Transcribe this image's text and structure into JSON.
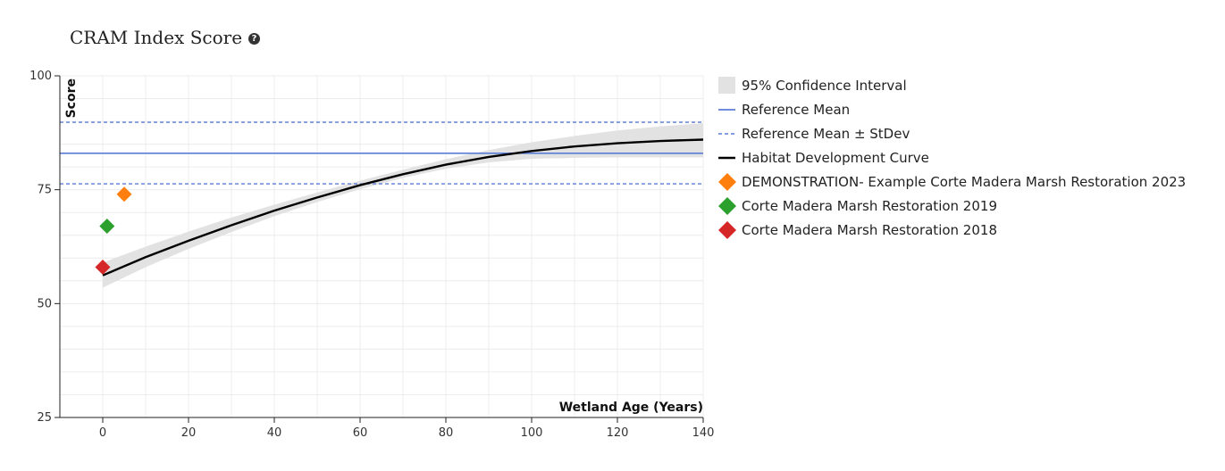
{
  "header": {
    "title": "CRAM Index Score",
    "help_icon": "question-circle-icon"
  },
  "chart_data": {
    "type": "line",
    "xlabel": "Wetland Age (Years)",
    "ylabel": "Score",
    "xlim": [
      -10,
      140
    ],
    "ylim": [
      25,
      100
    ],
    "x_ticks": [
      0,
      20,
      40,
      60,
      80,
      100,
      120,
      140
    ],
    "y_ticks": [
      25,
      50,
      75,
      100
    ],
    "grid": true,
    "legend_position": "right",
    "reference_mean": 83,
    "reference_stdev_band": [
      76.3,
      89.8
    ],
    "habitat_curve": {
      "name": "Habitat Development Curve",
      "x": [
        0,
        10,
        20,
        30,
        40,
        50,
        60,
        70,
        80,
        90,
        100,
        110,
        120,
        130,
        140
      ],
      "y": [
        56.2,
        60.2,
        63.8,
        67.2,
        70.4,
        73.3,
        76.0,
        78.4,
        80.5,
        82.2,
        83.5,
        84.5,
        85.2,
        85.7,
        86.0
      ]
    },
    "confidence_interval": {
      "name": "95% Confidence Interval",
      "x": [
        0,
        10,
        20,
        30,
        40,
        50,
        60,
        70,
        80,
        90,
        100,
        110,
        120,
        130,
        140
      ],
      "lower": [
        53.5,
        58.0,
        62.0,
        65.7,
        69.2,
        72.3,
        75.1,
        77.6,
        79.6,
        81.0,
        81.8,
        82.0,
        82.1,
        82.1,
        82.1
      ],
      "upper": [
        59.0,
        62.5,
        65.8,
        68.9,
        71.7,
        74.4,
        77.0,
        79.4,
        81.7,
        83.7,
        85.4,
        86.8,
        88.0,
        88.9,
        89.6
      ]
    },
    "points": [
      {
        "name": "DEMONSTRATION- Example Corte Madera Marsh Restoration 2023",
        "x": 5,
        "y": 74,
        "color": "#ff7f0e"
      },
      {
        "name": "Corte Madera Marsh Restoration 2019",
        "x": 1,
        "y": 67,
        "color": "#2ca02c"
      },
      {
        "name": "Corte Madera Marsh Restoration 2018",
        "x": 0,
        "y": 58,
        "color": "#d62728"
      }
    ],
    "legend": [
      {
        "label": "95% Confidence Interval",
        "kind": "area",
        "color": "#e2e2e2"
      },
      {
        "label": "Reference Mean",
        "kind": "line",
        "color": "#5b7cd6"
      },
      {
        "label": "Reference Mean ± StDev",
        "kind": "dashed",
        "color": "#5b7cd6"
      },
      {
        "label": "Habitat Development Curve",
        "kind": "line",
        "color": "#000000"
      },
      {
        "label": "DEMONSTRATION- Example Corte Madera Marsh Restoration 2023",
        "kind": "diamond",
        "color": "#ff7f0e"
      },
      {
        "label": "Corte Madera Marsh Restoration 2019",
        "kind": "diamond",
        "color": "#2ca02c"
      },
      {
        "label": "Corte Madera Marsh Restoration 2018",
        "kind": "diamond",
        "color": "#d62728"
      }
    ]
  }
}
